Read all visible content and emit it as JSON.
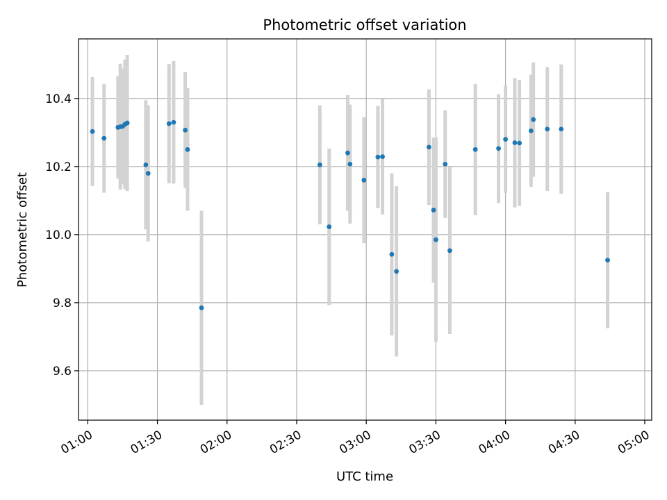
{
  "chart_data": {
    "type": "scatter",
    "title": "Photometric offset variation",
    "xlabel": "UTC time",
    "ylabel": "Photometric offset",
    "xlim": [
      "00:56",
      "05:03"
    ],
    "ylim": [
      9.455,
      10.575
    ],
    "x_ticks": [
      "01:00",
      "01:30",
      "02:00",
      "02:30",
      "03:00",
      "03:30",
      "04:00",
      "04:30",
      "05:00"
    ],
    "y_ticks": [
      "9.6",
      "9.8",
      "10.0",
      "10.2",
      "10.4"
    ],
    "grid": true,
    "colors": {
      "point": "#1f77b4",
      "errorbar": "#d3d3d3",
      "grid": "#b0b0b0"
    },
    "points": [
      {
        "x": "01:02",
        "y": 10.303,
        "err": 0.16
      },
      {
        "x": "01:07",
        "y": 10.283,
        "err": 0.16
      },
      {
        "x": "01:13",
        "y": 10.315,
        "err": 0.15
      },
      {
        "x": "01:14",
        "y": 10.317,
        "err": 0.185
      },
      {
        "x": "01:15",
        "y": 10.318,
        "err": 0.17
      },
      {
        "x": "01:16",
        "y": 10.324,
        "err": 0.19
      },
      {
        "x": "01:17",
        "y": 10.328,
        "err": 0.2
      },
      {
        "x": "01:25",
        "y": 10.205,
        "err": 0.19
      },
      {
        "x": "01:26",
        "y": 10.18,
        "err": 0.2
      },
      {
        "x": "01:35",
        "y": 10.326,
        "err": 0.175
      },
      {
        "x": "01:37",
        "y": 10.33,
        "err": 0.18
      },
      {
        "x": "01:42",
        "y": 10.307,
        "err": 0.17
      },
      {
        "x": "01:43",
        "y": 10.25,
        "err": 0.18
      },
      {
        "x": "01:49",
        "y": 9.785,
        "err": 0.285
      },
      {
        "x": "02:40",
        "y": 10.205,
        "err": 0.175
      },
      {
        "x": "02:44",
        "y": 10.023,
        "err": 0.23
      },
      {
        "x": "02:52",
        "y": 10.24,
        "err": 0.17
      },
      {
        "x": "02:53",
        "y": 10.207,
        "err": 0.175
      },
      {
        "x": "02:59",
        "y": 10.16,
        "err": 0.185
      },
      {
        "x": "03:05",
        "y": 10.228,
        "err": 0.15
      },
      {
        "x": "03:07",
        "y": 10.229,
        "err": 0.17
      },
      {
        "x": "03:11",
        "y": 9.942,
        "err": 0.238
      },
      {
        "x": "03:13",
        "y": 9.892,
        "err": 0.25
      },
      {
        "x": "03:27",
        "y": 10.257,
        "err": 0.17
      },
      {
        "x": "03:29",
        "y": 10.072,
        "err": 0.213
      },
      {
        "x": "03:30",
        "y": 9.985,
        "err": 0.3
      },
      {
        "x": "03:34",
        "y": 10.207,
        "err": 0.158
      },
      {
        "x": "03:36",
        "y": 9.953,
        "err": 0.245
      },
      {
        "x": "03:47",
        "y": 10.25,
        "err": 0.193
      },
      {
        "x": "03:57",
        "y": 10.253,
        "err": 0.16
      },
      {
        "x": "04:00",
        "y": 10.28,
        "err": 0.158
      },
      {
        "x": "04:04",
        "y": 10.27,
        "err": 0.19
      },
      {
        "x": "04:06",
        "y": 10.269,
        "err": 0.185
      },
      {
        "x": "04:11",
        "y": 10.305,
        "err": 0.165
      },
      {
        "x": "04:12",
        "y": 10.338,
        "err": 0.168
      },
      {
        "x": "04:18",
        "y": 10.31,
        "err": 0.182
      },
      {
        "x": "04:24",
        "y": 10.31,
        "err": 0.19
      },
      {
        "x": "04:44",
        "y": 9.925,
        "err": 0.2
      }
    ]
  }
}
